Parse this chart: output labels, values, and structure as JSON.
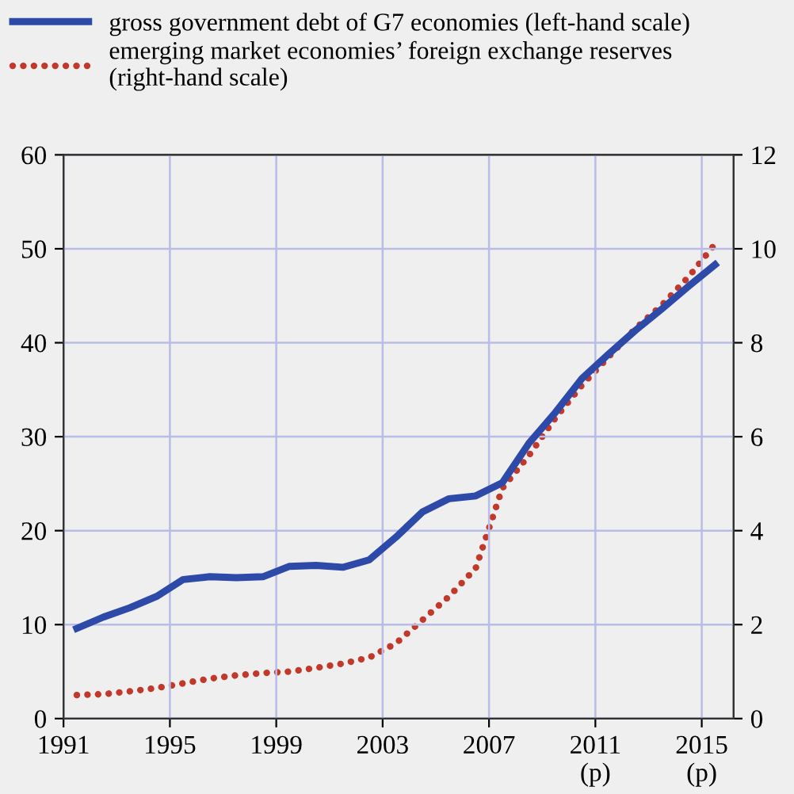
{
  "chart_data": {
    "type": "line",
    "x": [
      1991.5,
      1992.5,
      1993.5,
      1994.5,
      1995.5,
      1996.5,
      1997.5,
      1998.5,
      1999.5,
      2000.5,
      2001.5,
      2002.5,
      2003.5,
      2004.5,
      2005.5,
      2006.5,
      2007.5,
      2008.5,
      2009.5,
      2010.5,
      2011.5,
      2012.5,
      2013.5,
      2014.5,
      2015.5
    ],
    "series": [
      {
        "name": "gross government debt of G7 economies (left-hand scale)",
        "color": "#2e4aa8",
        "line_style": "solid",
        "values": [
          9.6,
          10.8,
          11.8,
          13.0,
          14.8,
          15.1,
          15.0,
          15.1,
          16.2,
          16.3,
          16.1,
          16.9,
          19.3,
          22.0,
          23.4,
          23.7,
          25.1,
          29.3,
          32.6,
          36.2,
          38.8,
          41.3,
          43.6,
          46.0,
          48.3
        ]
      },
      {
        "name": "emerging market economies’ foreign exchange reserves\n(right-hand scale)",
        "color": "#c0392b",
        "line_style": "dotted",
        "axis": "y2",
        "values": [
          0.5,
          0.52,
          0.58,
          0.65,
          0.75,
          0.85,
          0.92,
          0.97,
          1.0,
          1.08,
          1.17,
          1.3,
          1.6,
          2.1,
          2.6,
          3.2,
          4.9,
          5.6,
          6.4,
          7.1,
          7.7,
          8.3,
          8.8,
          9.4,
          10.1
        ]
      }
    ],
    "xlim": [
      1991,
      2016.2
    ],
    "xticks": [
      1991,
      1995,
      1999,
      2003,
      2007,
      {
        "value": 2011,
        "label": "2011\n(p)"
      },
      {
        "value": 2015,
        "label": "2015\n(p)"
      }
    ],
    "ylim": [
      0,
      60
    ],
    "yticks": [
      0,
      10,
      20,
      30,
      40,
      50,
      60
    ],
    "y2lim": [
      0,
      12
    ],
    "y2ticks": [
      0,
      2,
      4,
      6,
      8,
      10,
      12
    ],
    "grid": true,
    "legend": "top",
    "marker": "none"
  }
}
